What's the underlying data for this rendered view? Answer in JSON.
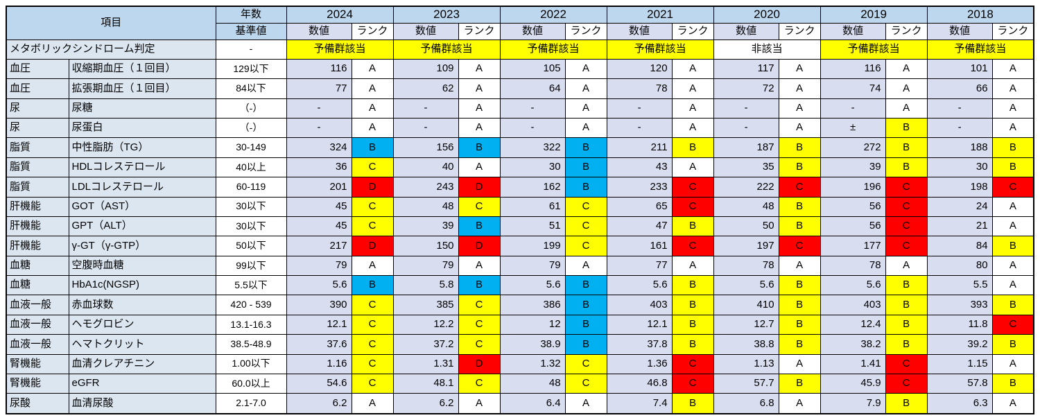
{
  "header": {
    "item_label": "項目",
    "years_label": "年数",
    "standard_label": "基準値",
    "value_label": "数値",
    "rank_label": "ランク",
    "years": [
      "2024",
      "2023",
      "2022",
      "2021",
      "2020",
      "2019",
      "2018"
    ]
  },
  "colors": {
    "header_bg": "#BDD7EE",
    "item_bg": "#DCE6F1",
    "value_bg": "#D9DDF0",
    "rank_colors": {
      "white": "#FFFFFF",
      "yellow": "#FFFF00",
      "cyan": "#00B0F0",
      "red": "#FF0000"
    }
  },
  "metabo_row": {
    "label": "メタボリックシンドローム判定",
    "standard": "-",
    "judgments": [
      {
        "text": "予備群該当",
        "color": "yellow"
      },
      {
        "text": "予備群該当",
        "color": "yellow"
      },
      {
        "text": "予備群該当",
        "color": "yellow"
      },
      {
        "text": "予備群該当",
        "color": "yellow"
      },
      {
        "text": "非該当",
        "color": "white"
      },
      {
        "text": "予備群該当",
        "color": "yellow"
      },
      {
        "text": "予備群該当",
        "color": "yellow"
      }
    ]
  },
  "rows": [
    {
      "category": "血圧",
      "item": "収縮期血圧（１回目）",
      "standard": "129以下",
      "cells": [
        {
          "value": "116",
          "rank": "A",
          "color": "white"
        },
        {
          "value": "109",
          "rank": "A",
          "color": "white"
        },
        {
          "value": "105",
          "rank": "A",
          "color": "white"
        },
        {
          "value": "120",
          "rank": "A",
          "color": "white"
        },
        {
          "value": "117",
          "rank": "A",
          "color": "white"
        },
        {
          "value": "116",
          "rank": "A",
          "color": "white"
        },
        {
          "value": "101",
          "rank": "A",
          "color": "white"
        }
      ]
    },
    {
      "category": "血圧",
      "item": "拡張期血圧（１回目）",
      "standard": "84以下",
      "cells": [
        {
          "value": "77",
          "rank": "A",
          "color": "white"
        },
        {
          "value": "62",
          "rank": "A",
          "color": "white"
        },
        {
          "value": "64",
          "rank": "A",
          "color": "white"
        },
        {
          "value": "78",
          "rank": "A",
          "color": "white"
        },
        {
          "value": "72",
          "rank": "A",
          "color": "white"
        },
        {
          "value": "74",
          "rank": "A",
          "color": "white"
        },
        {
          "value": "66",
          "rank": "A",
          "color": "white"
        }
      ]
    },
    {
      "category": "尿",
      "item": "尿糖",
      "standard": "（-）",
      "cells": [
        {
          "value": "-",
          "rank": "A",
          "color": "white"
        },
        {
          "value": "-",
          "rank": "A",
          "color": "white"
        },
        {
          "value": "-",
          "rank": "A",
          "color": "white"
        },
        {
          "value": "-",
          "rank": "A",
          "color": "white"
        },
        {
          "value": "-",
          "rank": "A",
          "color": "white"
        },
        {
          "value": "-",
          "rank": "A",
          "color": "white"
        },
        {
          "value": "-",
          "rank": "A",
          "color": "white"
        }
      ]
    },
    {
      "category": "尿",
      "item": "尿蛋白",
      "standard": "（-）",
      "cells": [
        {
          "value": "-",
          "rank": "A",
          "color": "white"
        },
        {
          "value": "-",
          "rank": "A",
          "color": "white"
        },
        {
          "value": "-",
          "rank": "A",
          "color": "white"
        },
        {
          "value": "-",
          "rank": "A",
          "color": "white"
        },
        {
          "value": "-",
          "rank": "A",
          "color": "white"
        },
        {
          "value": "±",
          "rank": "B",
          "color": "yellow"
        },
        {
          "value": "-",
          "rank": "A",
          "color": "white"
        }
      ]
    },
    {
      "category": "脂質",
      "item": "中性脂肪（TG）",
      "standard": "30-149",
      "cells": [
        {
          "value": "324",
          "rank": "B",
          "color": "cyan"
        },
        {
          "value": "156",
          "rank": "B",
          "color": "cyan"
        },
        {
          "value": "322",
          "rank": "B",
          "color": "cyan"
        },
        {
          "value": "211",
          "rank": "B",
          "color": "yellow"
        },
        {
          "value": "187",
          "rank": "B",
          "color": "yellow"
        },
        {
          "value": "272",
          "rank": "B",
          "color": "yellow"
        },
        {
          "value": "188",
          "rank": "B",
          "color": "yellow"
        }
      ]
    },
    {
      "category": "脂質",
      "item": "HDLコレステロール",
      "standard": "40以上",
      "cells": [
        {
          "value": "36",
          "rank": "C",
          "color": "yellow"
        },
        {
          "value": "40",
          "rank": "A",
          "color": "white"
        },
        {
          "value": "30",
          "rank": "B",
          "color": "cyan"
        },
        {
          "value": "43",
          "rank": "A",
          "color": "white"
        },
        {
          "value": "35",
          "rank": "B",
          "color": "yellow"
        },
        {
          "value": "39",
          "rank": "B",
          "color": "yellow"
        },
        {
          "value": "30",
          "rank": "B",
          "color": "yellow"
        }
      ]
    },
    {
      "category": "脂質",
      "item": "LDLコレステロール",
      "standard": "60-119",
      "cells": [
        {
          "value": "201",
          "rank": "D",
          "color": "red"
        },
        {
          "value": "243",
          "rank": "D",
          "color": "red"
        },
        {
          "value": "162",
          "rank": "B",
          "color": "cyan"
        },
        {
          "value": "233",
          "rank": "C",
          "color": "red"
        },
        {
          "value": "222",
          "rank": "C",
          "color": "red"
        },
        {
          "value": "196",
          "rank": "C",
          "color": "red"
        },
        {
          "value": "198",
          "rank": "C",
          "color": "red"
        }
      ]
    },
    {
      "category": "肝機能",
      "item": "GOT（AST）",
      "standard": "30以下",
      "cells": [
        {
          "value": "45",
          "rank": "C",
          "color": "yellow"
        },
        {
          "value": "48",
          "rank": "C",
          "color": "yellow"
        },
        {
          "value": "61",
          "rank": "C",
          "color": "yellow"
        },
        {
          "value": "65",
          "rank": "C",
          "color": "red"
        },
        {
          "value": "48",
          "rank": "B",
          "color": "yellow"
        },
        {
          "value": "56",
          "rank": "C",
          "color": "red"
        },
        {
          "value": "24",
          "rank": "A",
          "color": "white"
        }
      ]
    },
    {
      "category": "肝機能",
      "item": "GPT（ALT）",
      "standard": "30以下",
      "cells": [
        {
          "value": "45",
          "rank": "C",
          "color": "yellow"
        },
        {
          "value": "39",
          "rank": "B",
          "color": "cyan"
        },
        {
          "value": "51",
          "rank": "C",
          "color": "yellow"
        },
        {
          "value": "47",
          "rank": "B",
          "color": "yellow"
        },
        {
          "value": "50",
          "rank": "B",
          "color": "yellow"
        },
        {
          "value": "56",
          "rank": "C",
          "color": "red"
        },
        {
          "value": "21",
          "rank": "A",
          "color": "white"
        }
      ]
    },
    {
      "category": "肝機能",
      "item": "γ-GT（γ-GTP）",
      "standard": "50以下",
      "cells": [
        {
          "value": "217",
          "rank": "D",
          "color": "red"
        },
        {
          "value": "150",
          "rank": "D",
          "color": "red"
        },
        {
          "value": "199",
          "rank": "C",
          "color": "yellow"
        },
        {
          "value": "161",
          "rank": "C",
          "color": "red"
        },
        {
          "value": "197",
          "rank": "C",
          "color": "red"
        },
        {
          "value": "177",
          "rank": "C",
          "color": "red"
        },
        {
          "value": "84",
          "rank": "B",
          "color": "yellow"
        }
      ]
    },
    {
      "category": "血糖",
      "item": "空腹時血糖",
      "standard": "99以下",
      "cells": [
        {
          "value": "79",
          "rank": "A",
          "color": "white"
        },
        {
          "value": "79",
          "rank": "A",
          "color": "white"
        },
        {
          "value": "79",
          "rank": "A",
          "color": "white"
        },
        {
          "value": "77",
          "rank": "A",
          "color": "white"
        },
        {
          "value": "78",
          "rank": "A",
          "color": "white"
        },
        {
          "value": "78",
          "rank": "A",
          "color": "white"
        },
        {
          "value": "80",
          "rank": "A",
          "color": "white"
        }
      ]
    },
    {
      "category": "血糖",
      "item": "HbA1c(NGSP)",
      "standard": "5.5以下",
      "cells": [
        {
          "value": "5.6",
          "rank": "B",
          "color": "cyan"
        },
        {
          "value": "5.8",
          "rank": "B",
          "color": "cyan"
        },
        {
          "value": "5.6",
          "rank": "B",
          "color": "cyan"
        },
        {
          "value": "5.6",
          "rank": "B",
          "color": "yellow"
        },
        {
          "value": "5.6",
          "rank": "B",
          "color": "yellow"
        },
        {
          "value": "5.6",
          "rank": "B",
          "color": "yellow"
        },
        {
          "value": "5.5",
          "rank": "A",
          "color": "white"
        }
      ]
    },
    {
      "category": "血液一般",
      "item": "赤血球数",
      "standard": "420 - 539",
      "cells": [
        {
          "value": "390",
          "rank": "C",
          "color": "yellow"
        },
        {
          "value": "385",
          "rank": "C",
          "color": "yellow"
        },
        {
          "value": "386",
          "rank": "B",
          "color": "cyan"
        },
        {
          "value": "403",
          "rank": "B",
          "color": "yellow"
        },
        {
          "value": "410",
          "rank": "B",
          "color": "yellow"
        },
        {
          "value": "403",
          "rank": "B",
          "color": "yellow"
        },
        {
          "value": "393",
          "rank": "B",
          "color": "yellow"
        }
      ]
    },
    {
      "category": "血液一般",
      "item": "ヘモグロビン",
      "standard": "13.1-16.3",
      "cells": [
        {
          "value": "12.1",
          "rank": "C",
          "color": "yellow"
        },
        {
          "value": "12.2",
          "rank": "C",
          "color": "yellow"
        },
        {
          "value": "12",
          "rank": "B",
          "color": "cyan"
        },
        {
          "value": "12.1",
          "rank": "B",
          "color": "yellow"
        },
        {
          "value": "12.7",
          "rank": "B",
          "color": "yellow"
        },
        {
          "value": "12.4",
          "rank": "B",
          "color": "yellow"
        },
        {
          "value": "11.8",
          "rank": "C",
          "color": "red"
        }
      ]
    },
    {
      "category": "血液一般",
      "item": "ヘマトクリット",
      "standard": "38.5-48.9",
      "cells": [
        {
          "value": "37.6",
          "rank": "C",
          "color": "yellow"
        },
        {
          "value": "37.2",
          "rank": "C",
          "color": "yellow"
        },
        {
          "value": "38.9",
          "rank": "B",
          "color": "cyan"
        },
        {
          "value": "37.8",
          "rank": "B",
          "color": "yellow"
        },
        {
          "value": "38.8",
          "rank": "B",
          "color": "yellow"
        },
        {
          "value": "38.2",
          "rank": "B",
          "color": "yellow"
        },
        {
          "value": "39.2",
          "rank": "B",
          "color": "yellow"
        }
      ]
    },
    {
      "category": "腎機能",
      "item": "血清クレアチニン",
      "standard": "1.00以下",
      "cells": [
        {
          "value": "1.16",
          "rank": "C",
          "color": "yellow"
        },
        {
          "value": "1.31",
          "rank": "D",
          "color": "red"
        },
        {
          "value": "1.32",
          "rank": "C",
          "color": "yellow"
        },
        {
          "value": "1.36",
          "rank": "C",
          "color": "red"
        },
        {
          "value": "1.13",
          "rank": "A",
          "color": "white"
        },
        {
          "value": "1.41",
          "rank": "C",
          "color": "red"
        },
        {
          "value": "1.15",
          "rank": "A",
          "color": "white"
        }
      ]
    },
    {
      "category": "腎機能",
      "item": "eGFR",
      "standard": "60.0以上",
      "cells": [
        {
          "value": "54.6",
          "rank": "C",
          "color": "yellow"
        },
        {
          "value": "48.1",
          "rank": "C",
          "color": "yellow"
        },
        {
          "value": "48",
          "rank": "C",
          "color": "yellow"
        },
        {
          "value": "46.8",
          "rank": "C",
          "color": "red"
        },
        {
          "value": "57.7",
          "rank": "B",
          "color": "yellow"
        },
        {
          "value": "45.9",
          "rank": "C",
          "color": "red"
        },
        {
          "value": "57.8",
          "rank": "B",
          "color": "yellow"
        }
      ]
    },
    {
      "category": "尿酸",
      "item": "血清尿酸",
      "standard": "2.1-7.0",
      "cells": [
        {
          "value": "6.2",
          "rank": "A",
          "color": "white"
        },
        {
          "value": "6.2",
          "rank": "A",
          "color": "white"
        },
        {
          "value": "6.4",
          "rank": "A",
          "color": "white"
        },
        {
          "value": "7.4",
          "rank": "B",
          "color": "yellow"
        },
        {
          "value": "6.8",
          "rank": "A",
          "color": "white"
        },
        {
          "value": "7.9",
          "rank": "B",
          "color": "yellow"
        },
        {
          "value": "6.3",
          "rank": "A",
          "color": "white"
        }
      ]
    }
  ]
}
